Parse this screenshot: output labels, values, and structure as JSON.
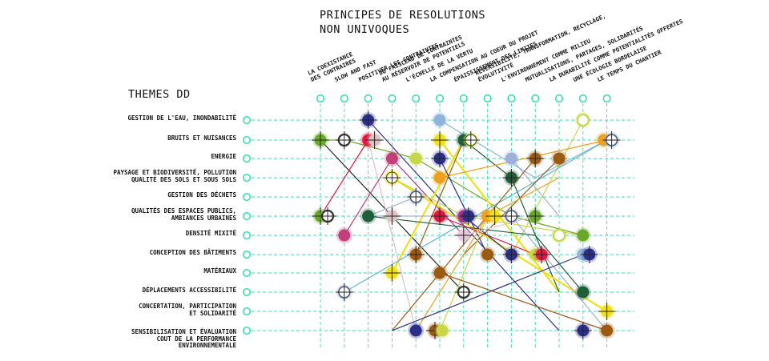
{
  "title": {
    "line1": "PRINCIPES DE RESOLUTIONS",
    "line2": "NON UNIVOQUES"
  },
  "themes_title": "THEMES DD",
  "columns": [
    {
      "lines": [
        "LA COEXISTANCE",
        "DES CONTRAIRES"
      ]
    },
    {
      "lines": [
        "SLOW AND FAST"
      ]
    },
    {
      "lines": [
        "POSITIVER LES CONTRAINTES"
      ]
    },
    {
      "lines": [
        "DU FAISCEAU DE CONTRAINTES",
        "AU RÉSERVOIR DE POTENTIELS"
      ]
    },
    {
      "lines": [
        "L'ÉCHELLE DE LA VERTU"
      ]
    },
    {
      "lines": [
        "LA COMPENSATION AU COEUR DU PROJET"
      ]
    },
    {
      "lines": [
        "ÉPAISSISSEMENT DES LIMITES"
      ]
    },
    {
      "lines": [
        "RÉVERSIBILITÉ, TRANSFORMATION, RECYCLAGE,",
        "ÉVOLUTIVITÉ"
      ]
    },
    {
      "lines": [
        "L'ENVIRONNEMENT COMME MILIEU"
      ]
    },
    {
      "lines": [
        "MUTUALISATIONS, PARTAGES, SOLIDARITÉS"
      ]
    },
    {
      "lines": [
        "LA DURABILITÉ COMME POTENTIALITÉS OFFERTES"
      ]
    },
    {
      "lines": [
        "UNE ÉCOLOGIE BORDELAISE"
      ]
    },
    {
      "lines": [
        "LE TEMPS DU CHANTIER"
      ]
    }
  ],
  "rows": [
    {
      "lines": [
        "GESTION DE L'EAU, INONDABILITÉ"
      ]
    },
    {
      "lines": [
        "BRUITS ET NUISANCES"
      ]
    },
    {
      "lines": [
        "ENERGIE"
      ]
    },
    {
      "lines": [
        "PAYSAGE ET BIODIVERSITÉ, POLLUTION",
        "QUALITÉ DES SOLS ET SOUS SOLS"
      ]
    },
    {
      "lines": [
        "GESTION DES DÉCHETS"
      ]
    },
    {
      "lines": [
        "QUALITÉS DES ESPACES PUBLICS,",
        "AMBIANCES URBAINES"
      ]
    },
    {
      "lines": [
        "DENSITÉ MIXITÉ"
      ]
    },
    {
      "lines": [
        "CONCEPTION DES BÂTIMENTS"
      ]
    },
    {
      "lines": [
        "MATÉRIAUX"
      ]
    },
    {
      "lines": [
        "DÉPLACEMENTS ACCESSIBILITÉ"
      ]
    },
    {
      "lines": [
        "CONCERTATION, PARTICIPATION",
        "ET SOLIDARITÉ"
      ]
    },
    {
      "lines": [
        "SENSIBILISATION ET ÉVALUATION",
        "COUT DE LA PERFORMANCE",
        "ENVIRONNEMENTALE"
      ]
    }
  ],
  "colors": {
    "grid": "#2fe0b0",
    "node_ring": "#2fe0b0",
    "text": "#111111"
  },
  "connections": [
    {
      "color": "#2b2f8a",
      "pts": [
        [
          2,
          0
        ],
        [
          10,
          11
        ]
      ]
    },
    {
      "color": "#8fb4d8",
      "pts": [
        [
          5,
          0
        ],
        [
          9,
          3
        ],
        [
          12,
          1
        ]
      ]
    },
    {
      "color": "#c6d84a",
      "pts": [
        [
          11,
          0
        ],
        [
          8,
          7
        ]
      ]
    },
    {
      "color": "#6aa82a",
      "pts": [
        [
          0,
          1
        ],
        [
          1,
          1
        ],
        [
          4,
          2
        ],
        [
          8,
          5
        ],
        [
          11,
          6
        ]
      ]
    },
    {
      "color": "#222222",
      "pts": [
        [
          0,
          1
        ],
        [
          3,
          5
        ],
        [
          6,
          9
        ]
      ]
    },
    {
      "color": "#e2173f",
      "pts": [
        [
          2,
          1
        ],
        [
          0,
          5
        ]
      ]
    },
    {
      "color": "#d9c3c3",
      "pts": [
        [
          2,
          1
        ],
        [
          4,
          11
        ]
      ]
    },
    {
      "color": "#f1df1a",
      "pts": [
        [
          5,
          1
        ],
        [
          10,
          9
        ]
      ]
    },
    {
      "color": "#1e5f3a",
      "pts": [
        [
          6,
          1
        ],
        [
          8,
          3
        ],
        [
          10,
          9
        ]
      ]
    },
    {
      "color": "#f1df1a",
      "pts": [
        [
          6,
          1
        ],
        [
          3,
          8
        ]
      ]
    },
    {
      "color": "#f0a01e",
      "pts": [
        [
          12,
          1
        ],
        [
          5,
          3
        ]
      ]
    },
    {
      "color": "#5bb6d8",
      "pts": [
        [
          12,
          1
        ],
        [
          1,
          9
        ]
      ]
    },
    {
      "color": "#c23f7a",
      "pts": [
        [
          3,
          2
        ],
        [
          1,
          6
        ]
      ]
    },
    {
      "color": "#b0328a",
      "pts": [
        [
          3,
          2
        ],
        [
          6,
          6
        ]
      ]
    },
    {
      "color": "#2b2f8a",
      "pts": [
        [
          5,
          2
        ],
        [
          7,
          7
        ]
      ]
    },
    {
      "color": "#9fb0d8",
      "pts": [
        [
          8,
          2
        ],
        [
          10,
          5
        ]
      ]
    },
    {
      "color": "#9a5a12",
      "pts": [
        [
          9,
          2
        ],
        [
          3,
          11
        ]
      ]
    },
    {
      "color": "#9a5a12",
      "pts": [
        [
          10,
          2
        ],
        [
          6,
          7
        ]
      ]
    },
    {
      "color": "#f1df1a",
      "pts": [
        [
          3,
          3
        ],
        [
          12,
          10
        ]
      ]
    },
    {
      "color": "#c6d84a",
      "pts": [
        [
          3,
          3
        ],
        [
          6,
          5
        ],
        [
          11,
          6
        ]
      ]
    },
    {
      "color": "#9fb0d8",
      "pts": [
        [
          4,
          4
        ],
        [
          2,
          5
        ],
        [
          8,
          5
        ]
      ]
    },
    {
      "color": "#1e5f3a",
      "pts": [
        [
          2,
          5
        ],
        [
          9,
          6
        ],
        [
          11,
          9
        ]
      ]
    },
    {
      "color": "#e2173f",
      "pts": [
        [
          5,
          5
        ],
        [
          9,
          7
        ]
      ]
    },
    {
      "color": "#2b2f8a",
      "pts": [
        [
          6,
          5
        ],
        [
          8,
          7
        ]
      ]
    },
    {
      "color": "#c6d84a",
      "pts": [
        [
          7,
          5
        ],
        [
          5,
          11
        ]
      ]
    },
    {
      "color": "#9fb0d8",
      "pts": [
        [
          8,
          5
        ],
        [
          12,
          11
        ]
      ]
    },
    {
      "color": "#f0a01e",
      "pts": [
        [
          7,
          5
        ],
        [
          4,
          11
        ]
      ]
    },
    {
      "color": "#9a5a12",
      "pts": [
        [
          4,
          7
        ],
        [
          6,
          1
        ]
      ]
    },
    {
      "color": "#9a5a12",
      "pts": [
        [
          5,
          8
        ],
        [
          12,
          11
        ]
      ]
    },
    {
      "color": "#2b2f8a",
      "pts": [
        [
          3,
          11
        ],
        [
          11,
          7
        ]
      ]
    },
    {
      "color": "#e8c8d8",
      "pts": [
        [
          6,
          6
        ],
        [
          9,
          5
        ]
      ]
    },
    {
      "color": "#f0a01e",
      "pts": [
        [
          7,
          5
        ],
        [
          10,
          3
        ]
      ]
    }
  ],
  "markers": [
    {
      "c": 2,
      "r": 0,
      "color": "#2b2f8a",
      "style": "cross"
    },
    {
      "c": 5,
      "r": 0,
      "color": "#8fb4d8",
      "style": "solid"
    },
    {
      "c": 11,
      "r": 0,
      "color": "#c6d84a",
      "style": "ring"
    },
    {
      "c": 0,
      "r": 1,
      "color": "#6aa82a",
      "style": "cross"
    },
    {
      "c": 1,
      "r": 1,
      "color": "#ffffff",
      "style": "ringcross"
    },
    {
      "c": 2,
      "r": 1,
      "color": "#e2173f",
      "style": "solid"
    },
    {
      "c": 2,
      "r": 1,
      "color": "#d9c3c3",
      "style": "cross",
      "dx": 8
    },
    {
      "c": 5,
      "r": 1,
      "color": "#f1df1a",
      "style": "cross"
    },
    {
      "c": 6,
      "r": 1,
      "color": "#1e5f3a",
      "style": "solid"
    },
    {
      "c": 6,
      "r": 1,
      "color": "#c6d84a",
      "style": "ringcross",
      "dx": 9
    },
    {
      "c": 12,
      "r": 1,
      "color": "#f0a01e",
      "style": "solid",
      "dx": -4
    },
    {
      "c": 12,
      "r": 1,
      "color": "#8fb4d8",
      "style": "ringcross",
      "dx": 6
    },
    {
      "c": 3,
      "r": 2,
      "color": "#c23f7a",
      "style": "solid"
    },
    {
      "c": 4,
      "r": 2,
      "color": "#c6d84a",
      "style": "solid"
    },
    {
      "c": 5,
      "r": 2,
      "color": "#2b2f8a",
      "style": "cross"
    },
    {
      "c": 8,
      "r": 2,
      "color": "#9fb0d8",
      "style": "solid"
    },
    {
      "c": 9,
      "r": 2,
      "color": "#9a5a12",
      "style": "cross"
    },
    {
      "c": 10,
      "r": 2,
      "color": "#9a5a12",
      "style": "solid"
    },
    {
      "c": 3,
      "r": 3,
      "color": "#f1df1a",
      "style": "ringcross"
    },
    {
      "c": 5,
      "r": 3,
      "color": "#f0a01e",
      "style": "solid"
    },
    {
      "c": 8,
      "r": 3,
      "color": "#1e5f3a",
      "style": "cross"
    },
    {
      "c": 4,
      "r": 4,
      "color": "#9fb0d8",
      "style": "ringcross"
    },
    {
      "c": 0,
      "r": 5,
      "color": "#6aa82a",
      "style": "cross"
    },
    {
      "c": 0,
      "r": 5,
      "color": "#ffffff",
      "style": "ringcross",
      "dx": 9
    },
    {
      "c": 2,
      "r": 5,
      "color": "#1e5f3a",
      "style": "solid"
    },
    {
      "c": 3,
      "r": 5,
      "color": "#d9c3c3",
      "style": "cross"
    },
    {
      "c": 5,
      "r": 5,
      "color": "#e2173f",
      "style": "cross"
    },
    {
      "c": 6,
      "r": 5,
      "color": "#b0328a",
      "style": "solid"
    },
    {
      "c": 6,
      "r": 5,
      "color": "#2b2f8a",
      "style": "cross",
      "dx": 6
    },
    {
      "c": 7,
      "r": 5,
      "color": "#f0a01e",
      "style": "solid"
    },
    {
      "c": 7,
      "r": 5,
      "color": "#f1df1a",
      "style": "cross",
      "dx": 9
    },
    {
      "c": 8,
      "r": 5,
      "color": "#9fb0d8",
      "style": "ringcross"
    },
    {
      "c": 9,
      "r": 5,
      "color": "#6aa82a",
      "style": "cross"
    },
    {
      "c": 1,
      "r": 6,
      "color": "#c23f7a",
      "style": "solid"
    },
    {
      "c": 6,
      "r": 6,
      "color": "#e8c8d8",
      "style": "cross"
    },
    {
      "c": 10,
      "r": 6,
      "color": "#c6d84a",
      "style": "ring"
    },
    {
      "c": 11,
      "r": 6,
      "color": "#6aa82a",
      "style": "solid"
    },
    {
      "c": 4,
      "r": 7,
      "color": "#9a5a12",
      "style": "cross"
    },
    {
      "c": 7,
      "r": 7,
      "color": "#9a5a12",
      "style": "solid"
    },
    {
      "c": 8,
      "r": 7,
      "color": "#2b2f8a",
      "style": "cross"
    },
    {
      "c": 9,
      "r": 7,
      "color": "#c6d84a",
      "style": "solid"
    },
    {
      "c": 9,
      "r": 7,
      "color": "#e2173f",
      "style": "cross",
      "dx": 8
    },
    {
      "c": 11,
      "r": 7,
      "color": "#8fb4d8",
      "style": "solid"
    },
    {
      "c": 11,
      "r": 7,
      "color": "#2b2f8a",
      "style": "cross",
      "dx": 8
    },
    {
      "c": 3,
      "r": 8,
      "color": "#f1df1a",
      "style": "cross"
    },
    {
      "c": 5,
      "r": 8,
      "color": "#9a5a12",
      "style": "solid"
    },
    {
      "c": 1,
      "r": 9,
      "color": "#9fb0d8",
      "style": "ringcross"
    },
    {
      "c": 6,
      "r": 9,
      "color": "#ffffff",
      "style": "ringcross"
    },
    {
      "c": 11,
      "r": 9,
      "color": "#1e5f3a",
      "style": "solid"
    },
    {
      "c": 12,
      "r": 10,
      "color": "#f1df1a",
      "style": "cross"
    },
    {
      "c": 4,
      "r": 11,
      "color": "#2b2f8a",
      "style": "solid"
    },
    {
      "c": 5,
      "r": 11,
      "color": "#9a5a12",
      "style": "cross",
      "dx": -6
    },
    {
      "c": 5,
      "r": 11,
      "color": "#c6d84a",
      "style": "solid",
      "dx": 3
    },
    {
      "c": 11,
      "r": 11,
      "color": "#2b2f8a",
      "style": "cross"
    },
    {
      "c": 12,
      "r": 11,
      "color": "#9a5a12",
      "style": "solid"
    }
  ]
}
